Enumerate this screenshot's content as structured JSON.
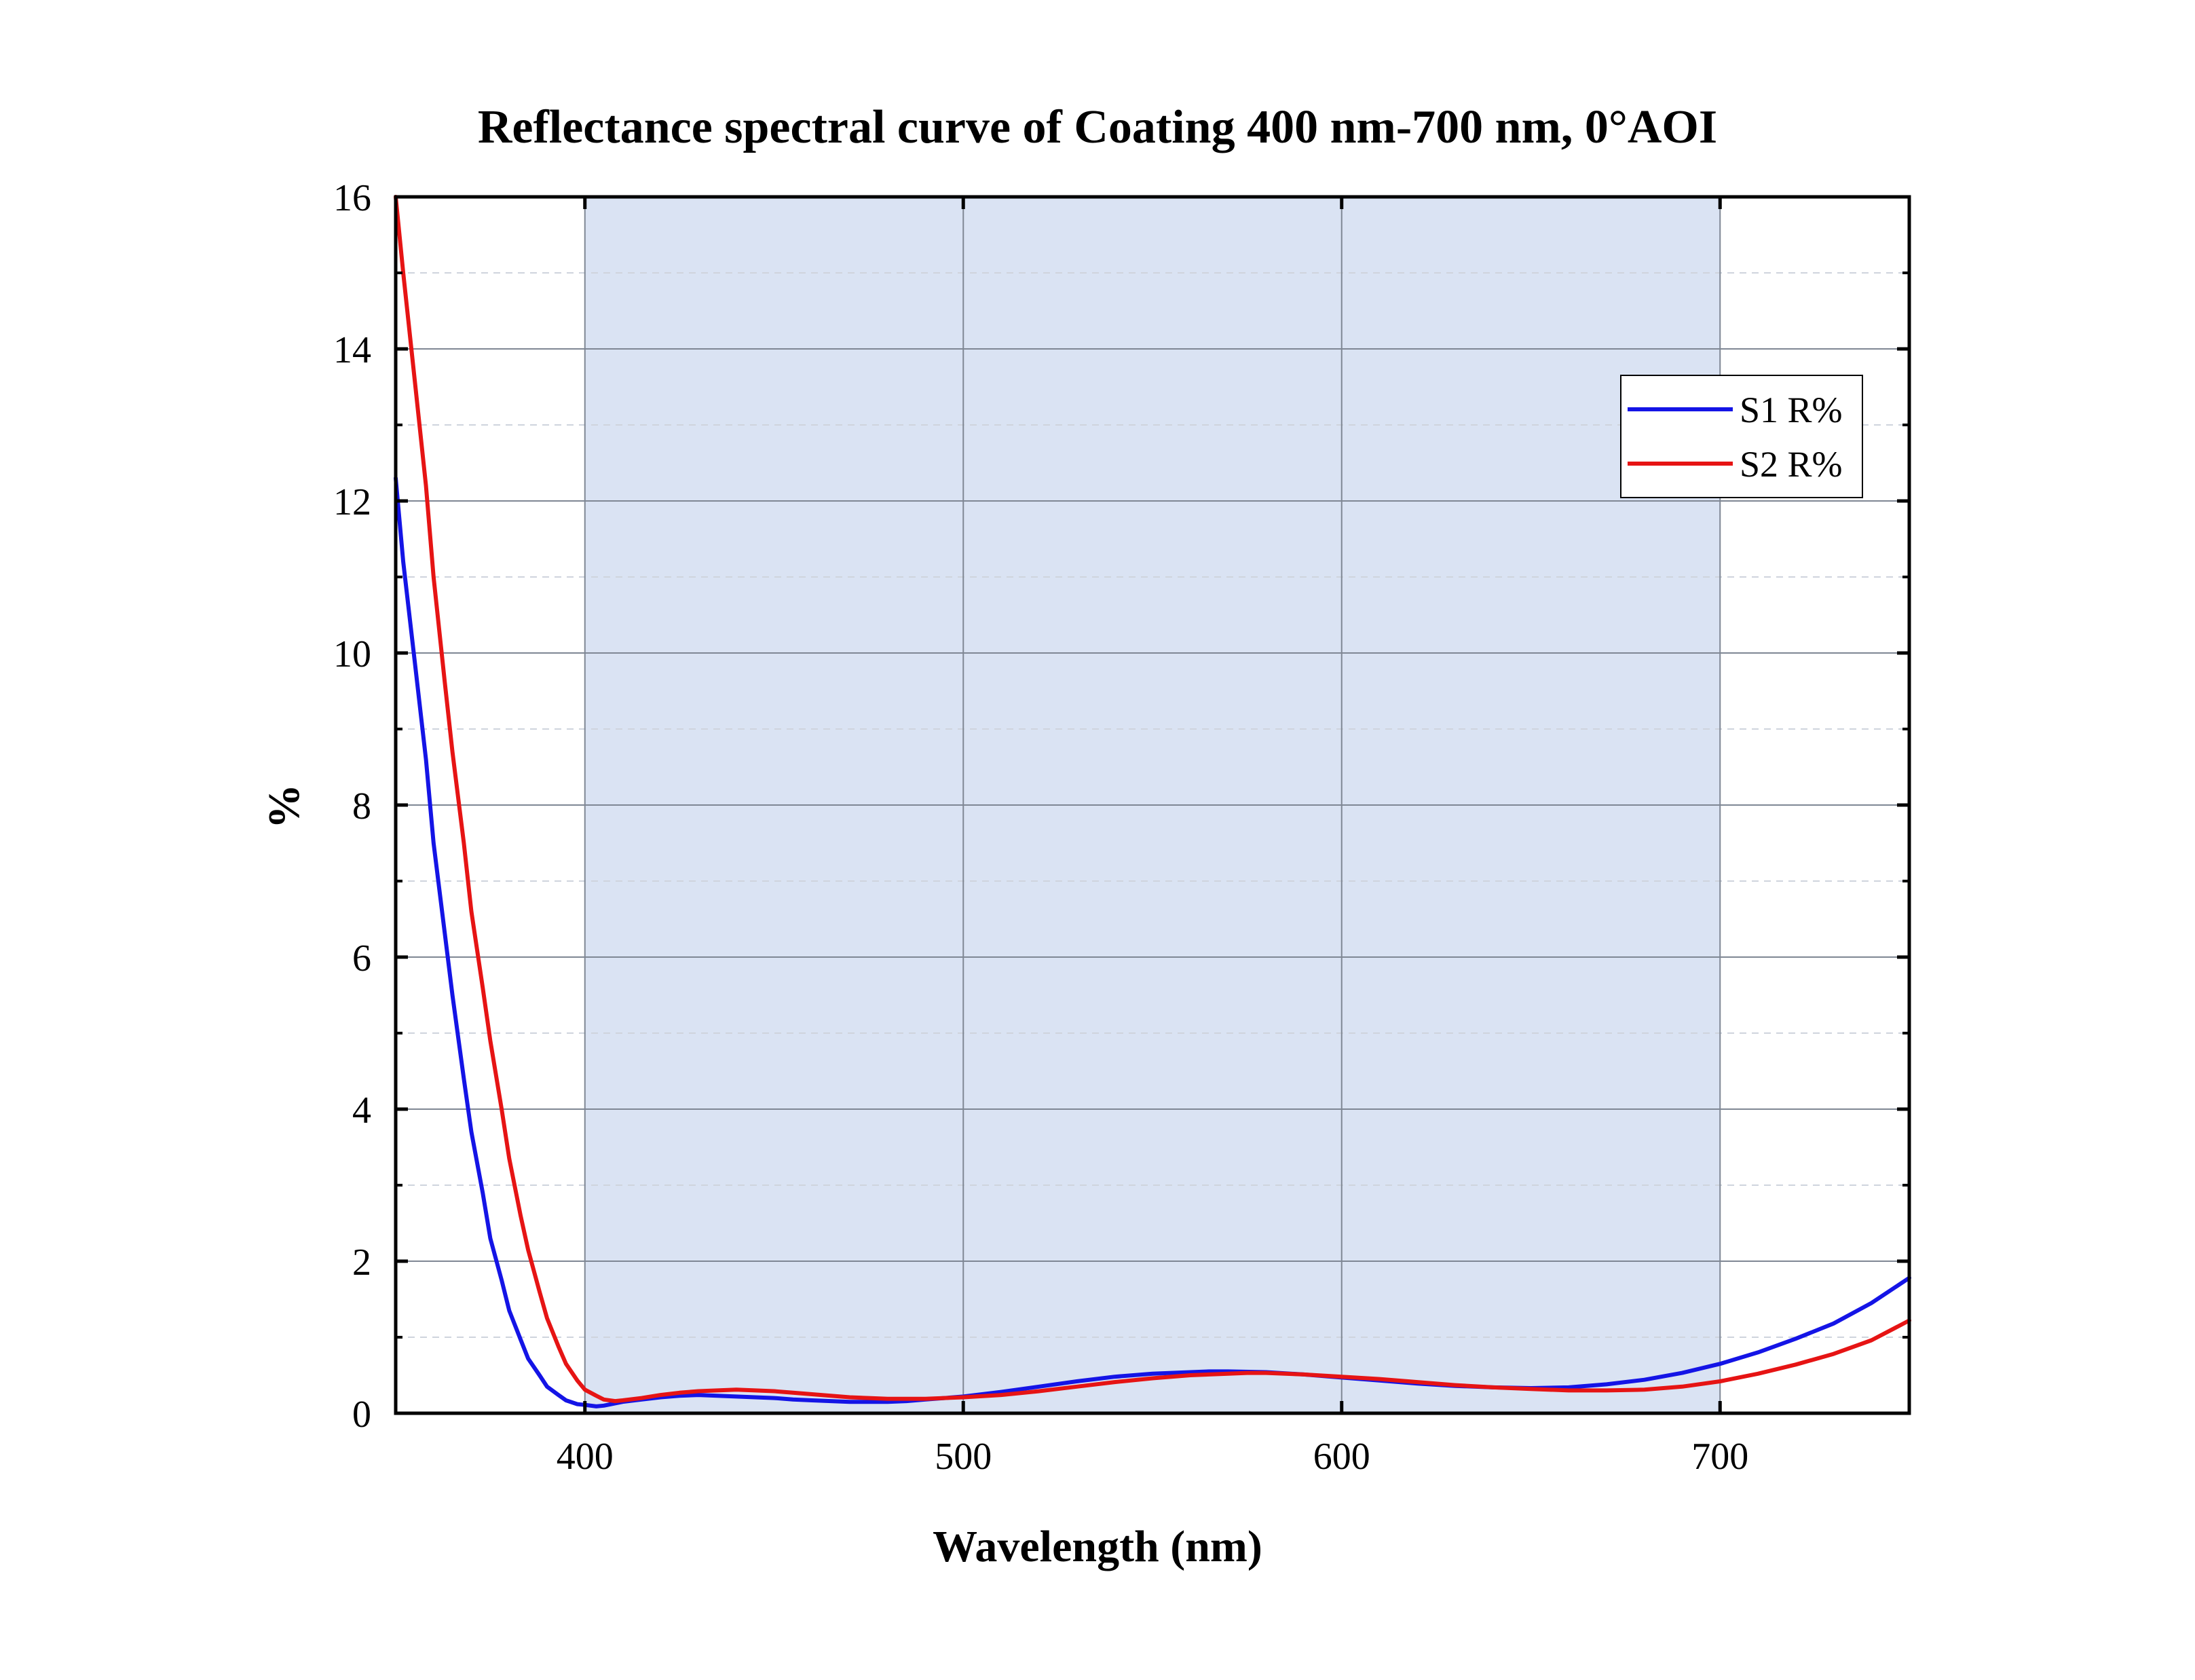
{
  "chart_data": {
    "type": "line",
    "title": "Reflectance spectral curve of Coating 400 nm-700 nm,  0°AOI",
    "xlabel": "Wavelength (nm)",
    "ylabel": "%",
    "xlim": [
      350,
      750
    ],
    "ylim": [
      0,
      16
    ],
    "xticks": [
      400,
      500,
      600,
      700
    ],
    "yticks": [
      0,
      2,
      4,
      6,
      8,
      10,
      12,
      14,
      16
    ],
    "grid": true,
    "shaded_band": {
      "x_start": 400,
      "x_end": 700,
      "color": "#dae3f3"
    },
    "legend": {
      "position": "top-right"
    },
    "series": [
      {
        "name": "S1 R%",
        "color": "#1414e6",
        "x": [
          350,
          352,
          355,
          358,
          360,
          363,
          365,
          368,
          370,
          373,
          375,
          378,
          380,
          383,
          385,
          388,
          390,
          393,
          395,
          398,
          400,
          403,
          405,
          408,
          410,
          415,
          420,
          425,
          430,
          435,
          440,
          445,
          450,
          455,
          460,
          465,
          470,
          475,
          480,
          485,
          490,
          495,
          500,
          510,
          520,
          530,
          540,
          550,
          560,
          565,
          570,
          580,
          590,
          600,
          610,
          620,
          630,
          640,
          650,
          660,
          670,
          680,
          690,
          700,
          710,
          720,
          730,
          740,
          750
        ],
        "y": [
          12.3,
          11.2,
          9.9,
          8.6,
          7.5,
          6.3,
          5.5,
          4.4,
          3.7,
          2.9,
          2.3,
          1.75,
          1.35,
          0.97,
          0.72,
          0.5,
          0.35,
          0.24,
          0.17,
          0.12,
          0.11,
          0.09,
          0.1,
          0.13,
          0.15,
          0.18,
          0.21,
          0.23,
          0.24,
          0.23,
          0.22,
          0.21,
          0.2,
          0.18,
          0.17,
          0.16,
          0.15,
          0.15,
          0.15,
          0.16,
          0.18,
          0.2,
          0.22,
          0.28,
          0.35,
          0.42,
          0.48,
          0.52,
          0.54,
          0.55,
          0.55,
          0.54,
          0.51,
          0.47,
          0.43,
          0.39,
          0.36,
          0.34,
          0.33,
          0.34,
          0.38,
          0.44,
          0.53,
          0.65,
          0.8,
          0.98,
          1.18,
          1.45,
          1.78
        ]
      },
      {
        "name": "S2 R%",
        "color": "#e61414",
        "x": [
          350,
          352,
          355,
          358,
          360,
          363,
          365,
          368,
          370,
          373,
          375,
          378,
          380,
          383,
          385,
          388,
          390,
          393,
          395,
          398,
          400,
          403,
          405,
          408,
          410,
          415,
          420,
          425,
          430,
          435,
          440,
          445,
          450,
          455,
          460,
          465,
          470,
          475,
          480,
          485,
          490,
          495,
          500,
          510,
          520,
          530,
          540,
          550,
          560,
          570,
          575,
          580,
          590,
          600,
          610,
          620,
          630,
          640,
          650,
          660,
          670,
          680,
          690,
          700,
          710,
          720,
          730,
          740,
          750
        ],
        "y": [
          16.0,
          15.0,
          13.6,
          12.2,
          11.0,
          9.6,
          8.7,
          7.5,
          6.6,
          5.6,
          4.9,
          4.0,
          3.35,
          2.6,
          2.15,
          1.6,
          1.25,
          0.88,
          0.65,
          0.43,
          0.31,
          0.23,
          0.18,
          0.16,
          0.17,
          0.2,
          0.24,
          0.27,
          0.29,
          0.3,
          0.31,
          0.3,
          0.29,
          0.27,
          0.25,
          0.23,
          0.21,
          0.2,
          0.19,
          0.19,
          0.19,
          0.2,
          0.21,
          0.24,
          0.29,
          0.35,
          0.41,
          0.46,
          0.5,
          0.52,
          0.53,
          0.53,
          0.51,
          0.48,
          0.45,
          0.41,
          0.37,
          0.34,
          0.32,
          0.3,
          0.3,
          0.31,
          0.35,
          0.42,
          0.52,
          0.64,
          0.78,
          0.96,
          1.22
        ]
      }
    ]
  }
}
